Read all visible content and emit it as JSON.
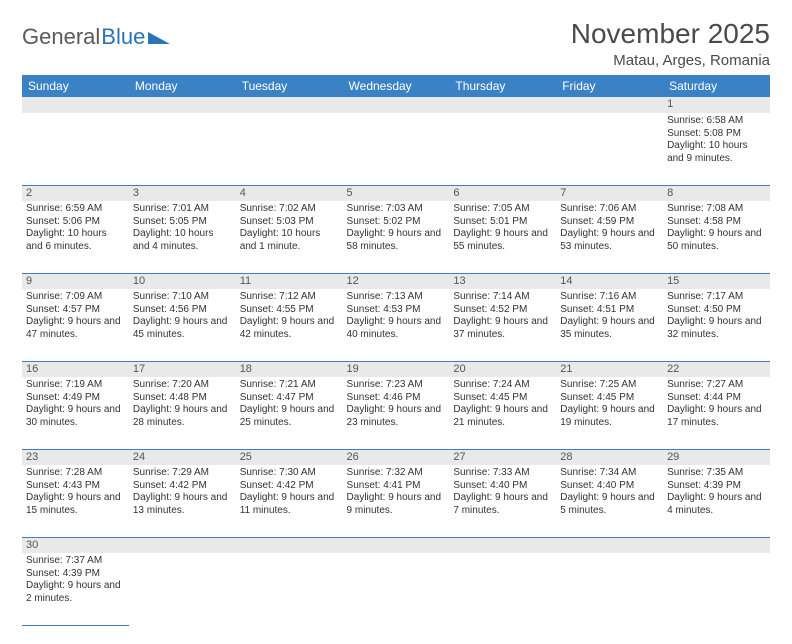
{
  "logo": {
    "text1": "General",
    "text2": "Blue"
  },
  "title": "November 2025",
  "subtitle": "Matau, Arges, Romania",
  "colors": {
    "header_bg": "#3b82c4",
    "header_text": "#ffffff",
    "daynum_bg": "#e9e9e9",
    "row_divider": "#3b82c4",
    "logo_gray": "#5a5a5a",
    "logo_blue": "#2b74b8"
  },
  "weekdays": [
    "Sunday",
    "Monday",
    "Tuesday",
    "Wednesday",
    "Thursday",
    "Friday",
    "Saturday"
  ],
  "weeks": [
    [
      null,
      null,
      null,
      null,
      null,
      null,
      {
        "d": "1",
        "sr": "6:58 AM",
        "ss": "5:08 PM",
        "dl": "10 hours and 9 minutes."
      }
    ],
    [
      {
        "d": "2",
        "sr": "6:59 AM",
        "ss": "5:06 PM",
        "dl": "10 hours and 6 minutes."
      },
      {
        "d": "3",
        "sr": "7:01 AM",
        "ss": "5:05 PM",
        "dl": "10 hours and 4 minutes."
      },
      {
        "d": "4",
        "sr": "7:02 AM",
        "ss": "5:03 PM",
        "dl": "10 hours and 1 minute."
      },
      {
        "d": "5",
        "sr": "7:03 AM",
        "ss": "5:02 PM",
        "dl": "9 hours and 58 minutes."
      },
      {
        "d": "6",
        "sr": "7:05 AM",
        "ss": "5:01 PM",
        "dl": "9 hours and 55 minutes."
      },
      {
        "d": "7",
        "sr": "7:06 AM",
        "ss": "4:59 PM",
        "dl": "9 hours and 53 minutes."
      },
      {
        "d": "8",
        "sr": "7:08 AM",
        "ss": "4:58 PM",
        "dl": "9 hours and 50 minutes."
      }
    ],
    [
      {
        "d": "9",
        "sr": "7:09 AM",
        "ss": "4:57 PM",
        "dl": "9 hours and 47 minutes."
      },
      {
        "d": "10",
        "sr": "7:10 AM",
        "ss": "4:56 PM",
        "dl": "9 hours and 45 minutes."
      },
      {
        "d": "11",
        "sr": "7:12 AM",
        "ss": "4:55 PM",
        "dl": "9 hours and 42 minutes."
      },
      {
        "d": "12",
        "sr": "7:13 AM",
        "ss": "4:53 PM",
        "dl": "9 hours and 40 minutes."
      },
      {
        "d": "13",
        "sr": "7:14 AM",
        "ss": "4:52 PM",
        "dl": "9 hours and 37 minutes."
      },
      {
        "d": "14",
        "sr": "7:16 AM",
        "ss": "4:51 PM",
        "dl": "9 hours and 35 minutes."
      },
      {
        "d": "15",
        "sr": "7:17 AM",
        "ss": "4:50 PM",
        "dl": "9 hours and 32 minutes."
      }
    ],
    [
      {
        "d": "16",
        "sr": "7:19 AM",
        "ss": "4:49 PM",
        "dl": "9 hours and 30 minutes."
      },
      {
        "d": "17",
        "sr": "7:20 AM",
        "ss": "4:48 PM",
        "dl": "9 hours and 28 minutes."
      },
      {
        "d": "18",
        "sr": "7:21 AM",
        "ss": "4:47 PM",
        "dl": "9 hours and 25 minutes."
      },
      {
        "d": "19",
        "sr": "7:23 AM",
        "ss": "4:46 PM",
        "dl": "9 hours and 23 minutes."
      },
      {
        "d": "20",
        "sr": "7:24 AM",
        "ss": "4:45 PM",
        "dl": "9 hours and 21 minutes."
      },
      {
        "d": "21",
        "sr": "7:25 AM",
        "ss": "4:45 PM",
        "dl": "9 hours and 19 minutes."
      },
      {
        "d": "22",
        "sr": "7:27 AM",
        "ss": "4:44 PM",
        "dl": "9 hours and 17 minutes."
      }
    ],
    [
      {
        "d": "23",
        "sr": "7:28 AM",
        "ss": "4:43 PM",
        "dl": "9 hours and 15 minutes."
      },
      {
        "d": "24",
        "sr": "7:29 AM",
        "ss": "4:42 PM",
        "dl": "9 hours and 13 minutes."
      },
      {
        "d": "25",
        "sr": "7:30 AM",
        "ss": "4:42 PM",
        "dl": "9 hours and 11 minutes."
      },
      {
        "d": "26",
        "sr": "7:32 AM",
        "ss": "4:41 PM",
        "dl": "9 hours and 9 minutes."
      },
      {
        "d": "27",
        "sr": "7:33 AM",
        "ss": "4:40 PM",
        "dl": "9 hours and 7 minutes."
      },
      {
        "d": "28",
        "sr": "7:34 AM",
        "ss": "4:40 PM",
        "dl": "9 hours and 5 minutes."
      },
      {
        "d": "29",
        "sr": "7:35 AM",
        "ss": "4:39 PM",
        "dl": "9 hours and 4 minutes."
      }
    ],
    [
      {
        "d": "30",
        "sr": "7:37 AM",
        "ss": "4:39 PM",
        "dl": "9 hours and 2 minutes."
      },
      null,
      null,
      null,
      null,
      null,
      null
    ]
  ],
  "labels": {
    "sunrise": "Sunrise:",
    "sunset": "Sunset:",
    "daylight": "Daylight:"
  }
}
